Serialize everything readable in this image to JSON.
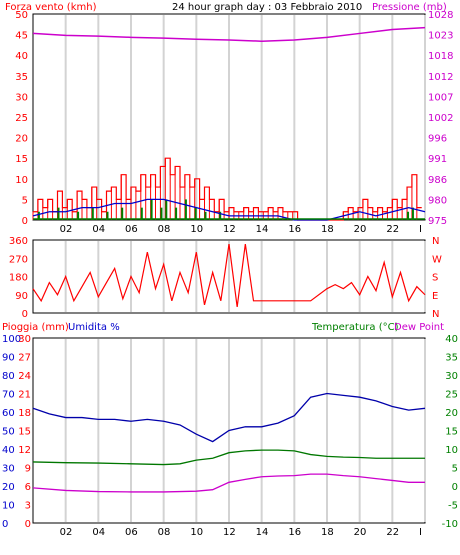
{
  "colors": {
    "panel_bg": "#ffffff",
    "border": "#000000",
    "grid": "#d3d3d3",
    "wind_speed": "#ff0000",
    "wind_gust": "#008000",
    "wind_avg": "#0000cc",
    "pressure": "#cc00cc",
    "direction": "#ff0000",
    "humidity": "#0000aa",
    "temperature": "#007700",
    "dewpoint": "#cc00cc",
    "rain_axis": "#ff0000",
    "humidity_axis": "#0000cc",
    "temp_axis": "#008000",
    "dew_axis": "#cc00cc"
  },
  "header": {
    "wind_label": "Forza vento (kmh)",
    "title": "24 hour graph day : 03 Febbraio 2010",
    "pressure_label": "Pressione (mb)"
  },
  "x_ticks": [
    "02",
    "04",
    "06",
    "08",
    "10",
    "12",
    "14",
    "16",
    "18",
    "20",
    "22",
    "I"
  ],
  "chart_data": [
    {
      "type": "bar",
      "name": "wind",
      "x_range": [
        0,
        24
      ],
      "ylim": [
        0,
        50
      ],
      "y_ticks": [
        "0",
        "5",
        "10",
        "15",
        "20",
        "25",
        "30",
        "35",
        "40",
        "45",
        "50"
      ],
      "secondary_ylim": [
        975,
        1028
      ],
      "secondary_ticks": [
        "975",
        "980",
        "986",
        "991",
        "996",
        "1002",
        "1007",
        "1012",
        "1018",
        "1023",
        "1028"
      ],
      "speed_series": [
        {
          "x": 0.0,
          "y": 2
        },
        {
          "x": 0.3,
          "y": 5
        },
        {
          "x": 0.6,
          "y": 3
        },
        {
          "x": 0.9,
          "y": 5
        },
        {
          "x": 1.2,
          "y": 2
        },
        {
          "x": 1.5,
          "y": 7
        },
        {
          "x": 1.8,
          "y": 3
        },
        {
          "x": 2.1,
          "y": 5
        },
        {
          "x": 2.4,
          "y": 2
        },
        {
          "x": 2.7,
          "y": 7
        },
        {
          "x": 3.0,
          "y": 5
        },
        {
          "x": 3.3,
          "y": 3
        },
        {
          "x": 3.6,
          "y": 8
        },
        {
          "x": 3.9,
          "y": 5
        },
        {
          "x": 4.2,
          "y": 2
        },
        {
          "x": 4.5,
          "y": 7
        },
        {
          "x": 4.8,
          "y": 8
        },
        {
          "x": 5.1,
          "y": 5
        },
        {
          "x": 5.4,
          "y": 11
        },
        {
          "x": 5.7,
          "y": 5
        },
        {
          "x": 6.0,
          "y": 8
        },
        {
          "x": 6.3,
          "y": 7
        },
        {
          "x": 6.6,
          "y": 11
        },
        {
          "x": 6.9,
          "y": 8
        },
        {
          "x": 7.2,
          "y": 11
        },
        {
          "x": 7.5,
          "y": 8
        },
        {
          "x": 7.8,
          "y": 13
        },
        {
          "x": 8.1,
          "y": 15
        },
        {
          "x": 8.4,
          "y": 11
        },
        {
          "x": 8.7,
          "y": 13
        },
        {
          "x": 9.0,
          "y": 8
        },
        {
          "x": 9.3,
          "y": 11
        },
        {
          "x": 9.6,
          "y": 8
        },
        {
          "x": 9.9,
          "y": 10
        },
        {
          "x": 10.2,
          "y": 5
        },
        {
          "x": 10.5,
          "y": 8
        },
        {
          "x": 10.8,
          "y": 5
        },
        {
          "x": 11.1,
          "y": 2
        },
        {
          "x": 11.4,
          "y": 5
        },
        {
          "x": 11.7,
          "y": 2
        },
        {
          "x": 12.0,
          "y": 3
        },
        {
          "x": 12.3,
          "y": 2
        },
        {
          "x": 12.6,
          "y": 2
        },
        {
          "x": 12.9,
          "y": 3
        },
        {
          "x": 13.2,
          "y": 2
        },
        {
          "x": 13.5,
          "y": 3
        },
        {
          "x": 13.8,
          "y": 2
        },
        {
          "x": 14.1,
          "y": 2
        },
        {
          "x": 14.4,
          "y": 3
        },
        {
          "x": 14.7,
          "y": 2
        },
        {
          "x": 15.0,
          "y": 3
        },
        {
          "x": 15.3,
          "y": 2
        },
        {
          "x": 15.6,
          "y": 2
        },
        {
          "x": 15.9,
          "y": 2
        },
        {
          "x": 16.2,
          "y": 0
        },
        {
          "x": 16.5,
          "y": 0
        },
        {
          "x": 17.0,
          "y": 0
        },
        {
          "x": 17.5,
          "y": 0
        },
        {
          "x": 18.0,
          "y": 0
        },
        {
          "x": 18.5,
          "y": 0
        },
        {
          "x": 19.0,
          "y": 2
        },
        {
          "x": 19.3,
          "y": 3
        },
        {
          "x": 19.6,
          "y": 2
        },
        {
          "x": 19.9,
          "y": 3
        },
        {
          "x": 20.2,
          "y": 5
        },
        {
          "x": 20.5,
          "y": 3
        },
        {
          "x": 20.8,
          "y": 2
        },
        {
          "x": 21.1,
          "y": 3
        },
        {
          "x": 21.4,
          "y": 2
        },
        {
          "x": 21.7,
          "y": 3
        },
        {
          "x": 22.0,
          "y": 5
        },
        {
          "x": 22.3,
          "y": 3
        },
        {
          "x": 22.6,
          "y": 5
        },
        {
          "x": 22.9,
          "y": 8
        },
        {
          "x": 23.2,
          "y": 11
        },
        {
          "x": 23.5,
          "y": 3
        }
      ],
      "gust_series": [
        {
          "x": 0.3,
          "y": 2
        },
        {
          "x": 1.5,
          "y": 3
        },
        {
          "x": 2.7,
          "y": 2
        },
        {
          "x": 3.6,
          "y": 3
        },
        {
          "x": 4.5,
          "y": 2
        },
        {
          "x": 5.4,
          "y": 3
        },
        {
          "x": 6.6,
          "y": 3
        },
        {
          "x": 7.2,
          "y": 5
        },
        {
          "x": 7.8,
          "y": 3
        },
        {
          "x": 8.1,
          "y": 5
        },
        {
          "x": 8.7,
          "y": 3
        },
        {
          "x": 9.3,
          "y": 5
        },
        {
          "x": 9.9,
          "y": 3
        },
        {
          "x": 10.5,
          "y": 2
        },
        {
          "x": 11.4,
          "y": 2
        },
        {
          "x": 22.9,
          "y": 2
        },
        {
          "x": 23.2,
          "y": 3
        }
      ],
      "avg_series": [
        {
          "x": 0.0,
          "y": 1
        },
        {
          "x": 1.0,
          "y": 2
        },
        {
          "x": 2.0,
          "y": 2
        },
        {
          "x": 3.0,
          "y": 3
        },
        {
          "x": 4.0,
          "y": 3
        },
        {
          "x": 5.0,
          "y": 4
        },
        {
          "x": 6.0,
          "y": 4
        },
        {
          "x": 7.0,
          "y": 5
        },
        {
          "x": 8.0,
          "y": 5
        },
        {
          "x": 9.0,
          "y": 4
        },
        {
          "x": 10.0,
          "y": 3
        },
        {
          "x": 11.0,
          "y": 2
        },
        {
          "x": 12.0,
          "y": 1
        },
        {
          "x": 13.0,
          "y": 1
        },
        {
          "x": 14.0,
          "y": 1
        },
        {
          "x": 15.0,
          "y": 1
        },
        {
          "x": 16.0,
          "y": 0
        },
        {
          "x": 18.0,
          "y": 0
        },
        {
          "x": 19.0,
          "y": 1
        },
        {
          "x": 20.0,
          "y": 2
        },
        {
          "x": 21.0,
          "y": 1
        },
        {
          "x": 22.0,
          "y": 2
        },
        {
          "x": 23.0,
          "y": 3
        },
        {
          "x": 24.0,
          "y": 2
        }
      ],
      "pressure_series": [
        {
          "x": 0,
          "y": 1023
        },
        {
          "x": 2,
          "y": 1022.5
        },
        {
          "x": 4,
          "y": 1022.3
        },
        {
          "x": 6,
          "y": 1022
        },
        {
          "x": 8,
          "y": 1021.8
        },
        {
          "x": 10,
          "y": 1021.5
        },
        {
          "x": 12,
          "y": 1021.3
        },
        {
          "x": 14,
          "y": 1021
        },
        {
          "x": 16,
          "y": 1021.3
        },
        {
          "x": 18,
          "y": 1022
        },
        {
          "x": 20,
          "y": 1023
        },
        {
          "x": 22,
          "y": 1024
        },
        {
          "x": 24,
          "y": 1024.5
        }
      ]
    },
    {
      "type": "line",
      "name": "wind-direction",
      "x_range": [
        0,
        24
      ],
      "ylim": [
        0,
        360
      ],
      "y_ticks": [
        "0",
        "90",
        "180",
        "270",
        "360"
      ],
      "compass_labels": [
        "N",
        "W",
        "S",
        "E",
        "N"
      ],
      "series": [
        {
          "x": 0,
          "y": 120
        },
        {
          "x": 0.5,
          "y": 60
        },
        {
          "x": 1,
          "y": 150
        },
        {
          "x": 1.5,
          "y": 90
        },
        {
          "x": 2,
          "y": 180
        },
        {
          "x": 2.5,
          "y": 60
        },
        {
          "x": 3,
          "y": 130
        },
        {
          "x": 3.5,
          "y": 200
        },
        {
          "x": 4,
          "y": 80
        },
        {
          "x": 4.5,
          "y": 150
        },
        {
          "x": 5,
          "y": 220
        },
        {
          "x": 5.5,
          "y": 70
        },
        {
          "x": 6,
          "y": 180
        },
        {
          "x": 6.5,
          "y": 100
        },
        {
          "x": 7,
          "y": 300
        },
        {
          "x": 7.5,
          "y": 120
        },
        {
          "x": 8,
          "y": 240
        },
        {
          "x": 8.5,
          "y": 60
        },
        {
          "x": 9,
          "y": 200
        },
        {
          "x": 9.5,
          "y": 100
        },
        {
          "x": 10,
          "y": 300
        },
        {
          "x": 10.5,
          "y": 40
        },
        {
          "x": 11,
          "y": 200
        },
        {
          "x": 11.5,
          "y": 60
        },
        {
          "x": 12,
          "y": 340
        },
        {
          "x": 12.5,
          "y": 30
        },
        {
          "x": 13,
          "y": 340
        },
        {
          "x": 13.5,
          "y": 60
        },
        {
          "x": 14,
          "y": 60
        },
        {
          "x": 15,
          "y": 60
        },
        {
          "x": 16,
          "y": 60
        },
        {
          "x": 17,
          "y": 60
        },
        {
          "x": 18,
          "y": 120
        },
        {
          "x": 18.5,
          "y": 140
        },
        {
          "x": 19,
          "y": 120
        },
        {
          "x": 19.5,
          "y": 150
        },
        {
          "x": 20,
          "y": 90
        },
        {
          "x": 20.5,
          "y": 180
        },
        {
          "x": 21,
          "y": 110
        },
        {
          "x": 21.5,
          "y": 250
        },
        {
          "x": 22,
          "y": 80
        },
        {
          "x": 22.5,
          "y": 200
        },
        {
          "x": 23,
          "y": 60
        },
        {
          "x": 23.5,
          "y": 130
        },
        {
          "x": 24,
          "y": 90
        }
      ]
    },
    {
      "type": "line",
      "name": "humidity-temperature",
      "x_range": [
        0,
        24
      ],
      "labels": {
        "rain": "Pioggia (mm)",
        "humidity": "Umidita %",
        "temperature": "Temperatura (°C)",
        "dewpoint": "Dew Point"
      },
      "rain_ticks": [
        "0",
        "3",
        "6",
        "9",
        "12",
        "15",
        "18",
        "21",
        "24",
        "27",
        "30"
      ],
      "humidity_ticks": [
        "0",
        "10",
        "20",
        "30",
        "40",
        "50",
        "60",
        "70",
        "80",
        "90",
        "100"
      ],
      "temp_ticks": [
        "-10",
        "-5",
        "0",
        "5",
        "10",
        "15",
        "20",
        "25",
        "30",
        "35",
        "40"
      ],
      "humidity_range": [
        0,
        100
      ],
      "temp_range": [
        -10,
        40
      ],
      "humidity_series": [
        {
          "x": 0,
          "y": 62
        },
        {
          "x": 1,
          "y": 59
        },
        {
          "x": 2,
          "y": 57
        },
        {
          "x": 3,
          "y": 57
        },
        {
          "x": 4,
          "y": 56
        },
        {
          "x": 5,
          "y": 56
        },
        {
          "x": 6,
          "y": 55
        },
        {
          "x": 7,
          "y": 56
        },
        {
          "x": 8,
          "y": 55
        },
        {
          "x": 9,
          "y": 53
        },
        {
          "x": 10,
          "y": 48
        },
        {
          "x": 11,
          "y": 44
        },
        {
          "x": 12,
          "y": 50
        },
        {
          "x": 13,
          "y": 52
        },
        {
          "x": 14,
          "y": 52
        },
        {
          "x": 15,
          "y": 54
        },
        {
          "x": 16,
          "y": 58
        },
        {
          "x": 17,
          "y": 68
        },
        {
          "x": 18,
          "y": 70
        },
        {
          "x": 19,
          "y": 69
        },
        {
          "x": 20,
          "y": 68
        },
        {
          "x": 21,
          "y": 66
        },
        {
          "x": 22,
          "y": 63
        },
        {
          "x": 23,
          "y": 61
        },
        {
          "x": 24,
          "y": 62
        }
      ],
      "temperature_series": [
        {
          "x": 0,
          "y": 6.5
        },
        {
          "x": 2,
          "y": 6.3
        },
        {
          "x": 4,
          "y": 6.2
        },
        {
          "x": 6,
          "y": 6.0
        },
        {
          "x": 8,
          "y": 5.8
        },
        {
          "x": 9,
          "y": 6.0
        },
        {
          "x": 10,
          "y": 7.0
        },
        {
          "x": 11,
          "y": 7.5
        },
        {
          "x": 12,
          "y": 9.0
        },
        {
          "x": 13,
          "y": 9.5
        },
        {
          "x": 14,
          "y": 9.7
        },
        {
          "x": 15,
          "y": 9.7
        },
        {
          "x": 16,
          "y": 9.5
        },
        {
          "x": 17,
          "y": 8.5
        },
        {
          "x": 18,
          "y": 8.0
        },
        {
          "x": 19,
          "y": 7.8
        },
        {
          "x": 20,
          "y": 7.7
        },
        {
          "x": 21,
          "y": 7.5
        },
        {
          "x": 22,
          "y": 7.5
        },
        {
          "x": 23,
          "y": 7.5
        },
        {
          "x": 24,
          "y": 7.5
        }
      ],
      "dewpoint_series": [
        {
          "x": 0,
          "y": -0.5
        },
        {
          "x": 2,
          "y": -1.2
        },
        {
          "x": 4,
          "y": -1.5
        },
        {
          "x": 6,
          "y": -1.6
        },
        {
          "x": 8,
          "y": -1.6
        },
        {
          "x": 10,
          "y": -1.4
        },
        {
          "x": 11,
          "y": -1.0
        },
        {
          "x": 12,
          "y": 1.0
        },
        {
          "x": 13,
          "y": 1.8
        },
        {
          "x": 14,
          "y": 2.5
        },
        {
          "x": 15,
          "y": 2.7
        },
        {
          "x": 16,
          "y": 2.8
        },
        {
          "x": 17,
          "y": 3.2
        },
        {
          "x": 18,
          "y": 3.2
        },
        {
          "x": 19,
          "y": 2.8
        },
        {
          "x": 20,
          "y": 2.5
        },
        {
          "x": 21,
          "y": 2.0
        },
        {
          "x": 22,
          "y": 1.5
        },
        {
          "x": 23,
          "y": 1.0
        },
        {
          "x": 24,
          "y": 1.0
        }
      ]
    }
  ]
}
